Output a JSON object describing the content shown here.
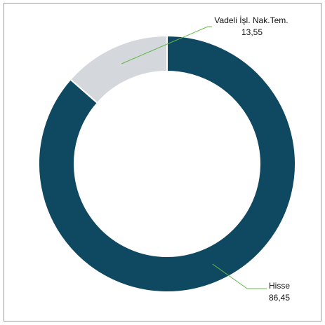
{
  "chart_data": {
    "type": "pie",
    "variant": "donut",
    "title": "",
    "series": [
      {
        "values": [
          {
            "label": "Hisse",
            "value": 86.45,
            "display_value": "86,45",
            "color": "#0f4961"
          },
          {
            "label": "Vadeli İşl. Nak.Tem.",
            "value": 13.55,
            "display_value": "13,55",
            "color": "#d4d8dd"
          }
        ]
      }
    ],
    "legend": "none",
    "leader_line_color": "#63b84b"
  }
}
